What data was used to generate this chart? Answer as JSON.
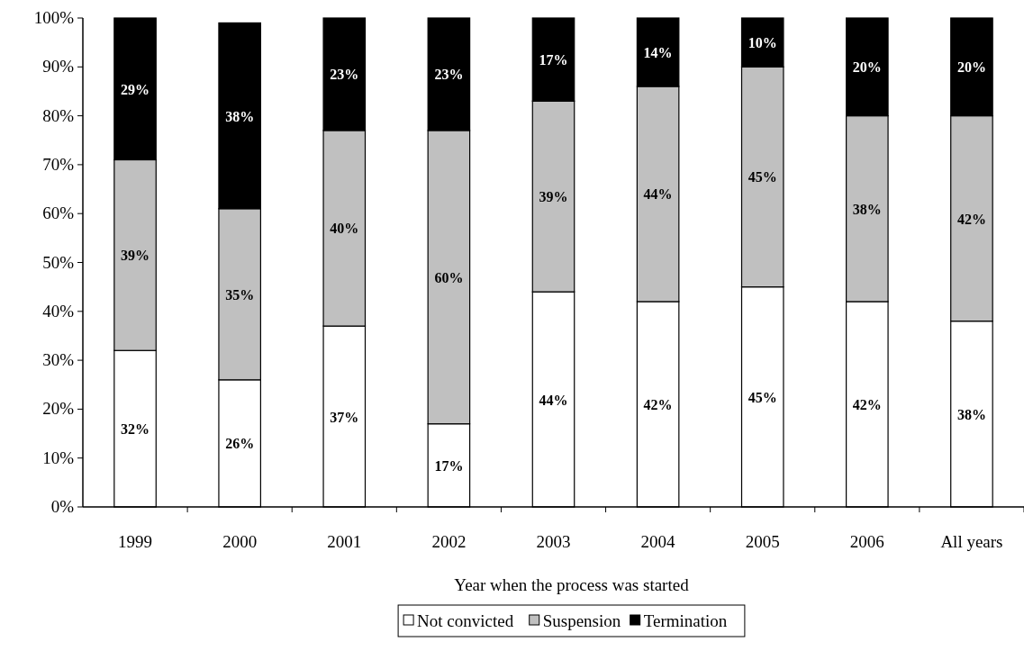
{
  "chart_data": {
    "type": "bar",
    "stacked": true,
    "xlabel": "Year when the process was started",
    "categories": [
      "1999",
      "2000",
      "2001",
      "2002",
      "2003",
      "2004",
      "2005",
      "2006",
      "All years"
    ],
    "series": [
      {
        "name": "Not convicted",
        "color": "#ffffff",
        "values": [
          32,
          26,
          37,
          17,
          44,
          42,
          45,
          42,
          38
        ],
        "value_labels": [
          "32%",
          "26%",
          "37%",
          "17%",
          "44%",
          "42%",
          "45%",
          "42%",
          "38%"
        ]
      },
      {
        "name": "Suspension",
        "color": "#c0c0c0",
        "values": [
          39,
          35,
          40,
          60,
          39,
          44,
          45,
          38,
          42
        ],
        "value_labels": [
          "39%",
          "35%",
          "40%",
          "60%",
          "39%",
          "44%",
          "45%",
          "38%",
          "42%"
        ]
      },
      {
        "name": "Termination",
        "color": "#000000",
        "values": [
          29,
          38,
          23,
          23,
          17,
          14,
          10,
          20,
          20
        ],
        "value_labels": [
          "29%",
          "38%",
          "23%",
          "23%",
          "17%",
          "14%",
          "10%",
          "20%",
          "20%"
        ]
      }
    ],
    "ylim": [
      0,
      100
    ],
    "yticks": [
      {
        "value": 0,
        "label": "0%"
      },
      {
        "value": 10,
        "label": "10%"
      },
      {
        "value": 20,
        "label": "20%"
      },
      {
        "value": 30,
        "label": "30%"
      },
      {
        "value": 40,
        "label": "40%"
      },
      {
        "value": 50,
        "label": "50%"
      },
      {
        "value": 60,
        "label": "60%"
      },
      {
        "value": 70,
        "label": "70%"
      },
      {
        "value": 80,
        "label": "80%"
      },
      {
        "value": 90,
        "label": "90%"
      },
      {
        "value": 100,
        "label": "100%"
      }
    ],
    "legend": "bottom",
    "grid": false
  }
}
